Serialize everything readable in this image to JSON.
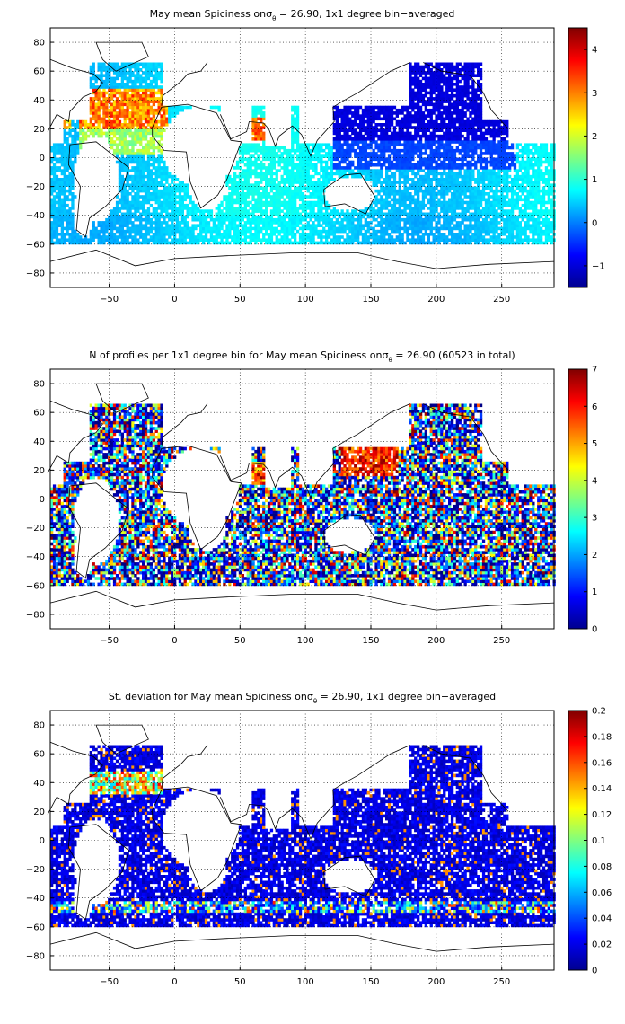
{
  "panels": [
    {
      "id": "mean",
      "title": "May mean Spiciness onσθ = 26.90, 1x1 degree bin−averaged",
      "title_parts": [
        "May mean Spiciness on",
        "σ",
        "θ",
        " = 26.90, 1x1 degree bin−averaged"
      ],
      "x_ticks": [
        "−50",
        "0",
        "50",
        "100",
        "150",
        "200",
        "250"
      ],
      "y_ticks": [
        "80",
        "60",
        "40",
        "20",
        "0",
        "−20",
        "−40",
        "−60",
        "−80"
      ],
      "colorbar_ticks": [
        "4",
        "3",
        "2",
        "1",
        "0",
        "−1"
      ],
      "colorbar_range": [
        -1.5,
        4.5
      ]
    },
    {
      "id": "count",
      "title": "N of profiles per 1x1 degree bin for May mean Spiciness onσθ = 26.90 (60523 in total)",
      "title_parts": [
        "N of profiles per 1x1 degree bin for May mean Spiciness on",
        "σ",
        "θ",
        " = 26.90 (60523 in total)"
      ],
      "x_ticks": [
        "−50",
        "0",
        "50",
        "100",
        "150",
        "200",
        "250"
      ],
      "y_ticks": [
        "80",
        "60",
        "40",
        "20",
        "0",
        "−20",
        "−40",
        "−60",
        "−80"
      ],
      "colorbar_ticks": [
        "7",
        "6",
        "5",
        "4",
        "3",
        "2",
        "1",
        "0"
      ],
      "colorbar_range": [
        0,
        7
      ]
    },
    {
      "id": "std",
      "title": "St. deviation for May mean Spiciness onσθ = 26.90, 1x1 degree bin−averaged",
      "title_parts": [
        "St. deviation for May mean Spiciness on",
        "σ",
        "θ",
        " = 26.90, 1x1 degree bin−averaged"
      ],
      "x_ticks": [
        "−50",
        "0",
        "50",
        "100",
        "150",
        "200",
        "250"
      ],
      "y_ticks": [
        "80",
        "60",
        "40",
        "20",
        "0",
        "−20",
        "−40",
        "−60",
        "−80"
      ],
      "colorbar_ticks": [
        "0.2",
        "0.18",
        "0.16",
        "0.14",
        "0.12",
        "0.1",
        "0.08",
        "0.06",
        "0.04",
        "0.02",
        "0"
      ],
      "colorbar_range": [
        0,
        0.2
      ]
    }
  ],
  "axes": {
    "x_range": [
      -95,
      290
    ],
    "y_range": [
      -90,
      90
    ],
    "x_tick_values": [
      -50,
      0,
      50,
      100,
      150,
      200,
      250
    ],
    "y_tick_values": [
      80,
      60,
      40,
      20,
      0,
      -20,
      -40,
      -60,
      -80
    ],
    "grid": "dotted"
  },
  "colormap": "jet",
  "colors": {
    "land": "#ffffff",
    "coastline": "#000000",
    "grid": "#000000",
    "axes": "#000000"
  }
}
